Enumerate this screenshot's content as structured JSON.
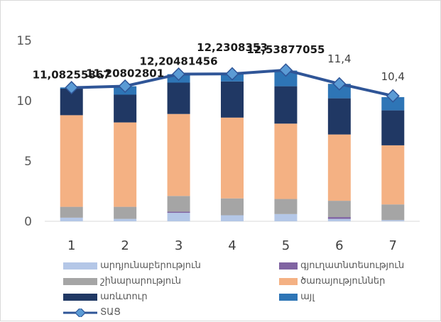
{
  "chart_data": {
    "type": "bar",
    "stacked": true,
    "categories": [
      "1",
      "2",
      "3",
      "4",
      "5",
      "6",
      "7"
    ],
    "ylim": [
      0,
      15
    ],
    "yticks": [
      0,
      5,
      10,
      15
    ],
    "grid": false,
    "legend_position": "bottom",
    "series": [
      {
        "name": "արդյունաբերություն",
        "color": "#b4c7e7",
        "values": [
          0.3,
          0.2,
          0.7,
          0.5,
          0.6,
          0.2,
          0.1
        ]
      },
      {
        "name": "գյուղատնտեսություն",
        "color": "#8064a2",
        "values": [
          0.0,
          0.0,
          0.1,
          0.0,
          0.0,
          0.15,
          0.0
        ]
      },
      {
        "name": "շինարարություն",
        "color": "#a5a5a5",
        "values": [
          0.9,
          1.0,
          1.3,
          1.4,
          1.25,
          1.35,
          1.3
        ]
      },
      {
        "name": "ծառայություններ",
        "color": "#f4b183",
        "values": [
          7.6,
          7.0,
          6.8,
          6.7,
          6.25,
          5.5,
          4.9
        ]
      },
      {
        "name": "առևտուր",
        "color": "#203864",
        "values": [
          2.2,
          2.3,
          2.6,
          3.0,
          3.1,
          3.0,
          2.9
        ]
      },
      {
        "name": "այլ",
        "color": "#2e75b6",
        "values": [
          0.1,
          0.7,
          0.7,
          0.6,
          1.3,
          1.2,
          1.1
        ]
      }
    ],
    "line": {
      "name": "ՏԱՑ",
      "color": "#2f5597",
      "values": [
        11.08255867,
        11.20802801,
        12.20481456,
        12.2308353,
        12.53877055,
        11.4,
        10.4
      ],
      "labels": [
        "11,08255867",
        "11,20802801",
        "12,20481456",
        "12,2308353",
        "12,53877055",
        "11,4",
        "10,4"
      ]
    }
  }
}
